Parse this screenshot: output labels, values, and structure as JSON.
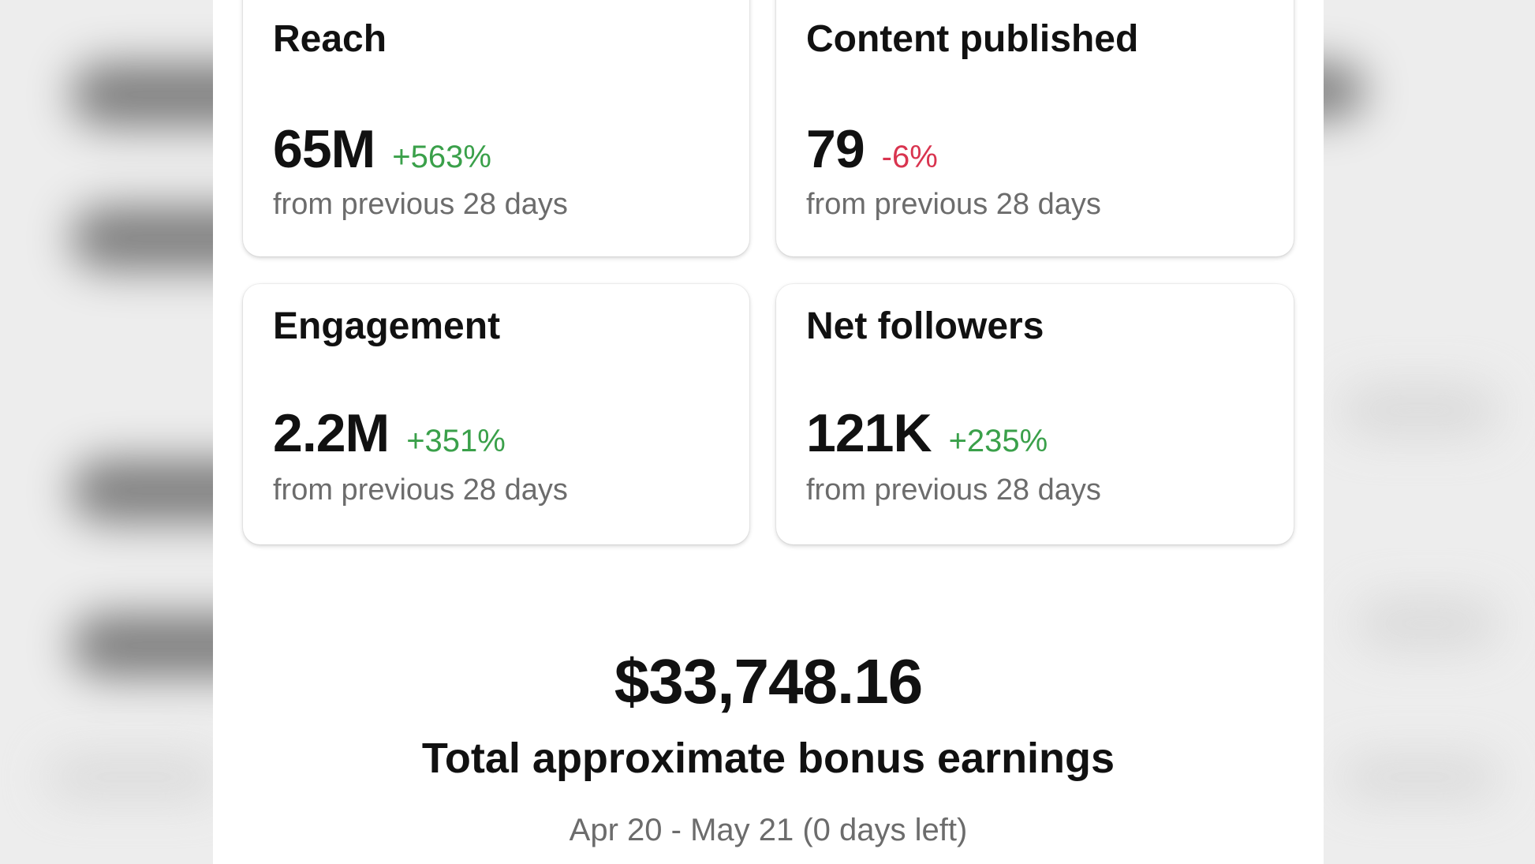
{
  "cards": [
    {
      "title": "Reach",
      "value": "65M",
      "change": "+563%",
      "change_direction": "up",
      "subtitle": "from previous 28 days"
    },
    {
      "title": "Content published",
      "value": "79",
      "change": "-6%",
      "change_direction": "down",
      "subtitle": "from previous 28 days"
    },
    {
      "title": "Engagement",
      "value": "2.2M",
      "change": "+351%",
      "change_direction": "up",
      "subtitle": "from previous 28 days"
    },
    {
      "title": "Net followers",
      "value": "121K",
      "change": "+235%",
      "change_direction": "up",
      "subtitle": "from previous 28 days"
    }
  ],
  "earnings": {
    "amount": "$33,748.16",
    "label": "Total approximate bonus earnings",
    "period": "Apr 20 - May 21 (0 days left)"
  },
  "colors": {
    "positive": "#3aa04a",
    "negative": "#d9344f",
    "muted_text": "#6c6c6c",
    "primary_text": "#111111"
  }
}
